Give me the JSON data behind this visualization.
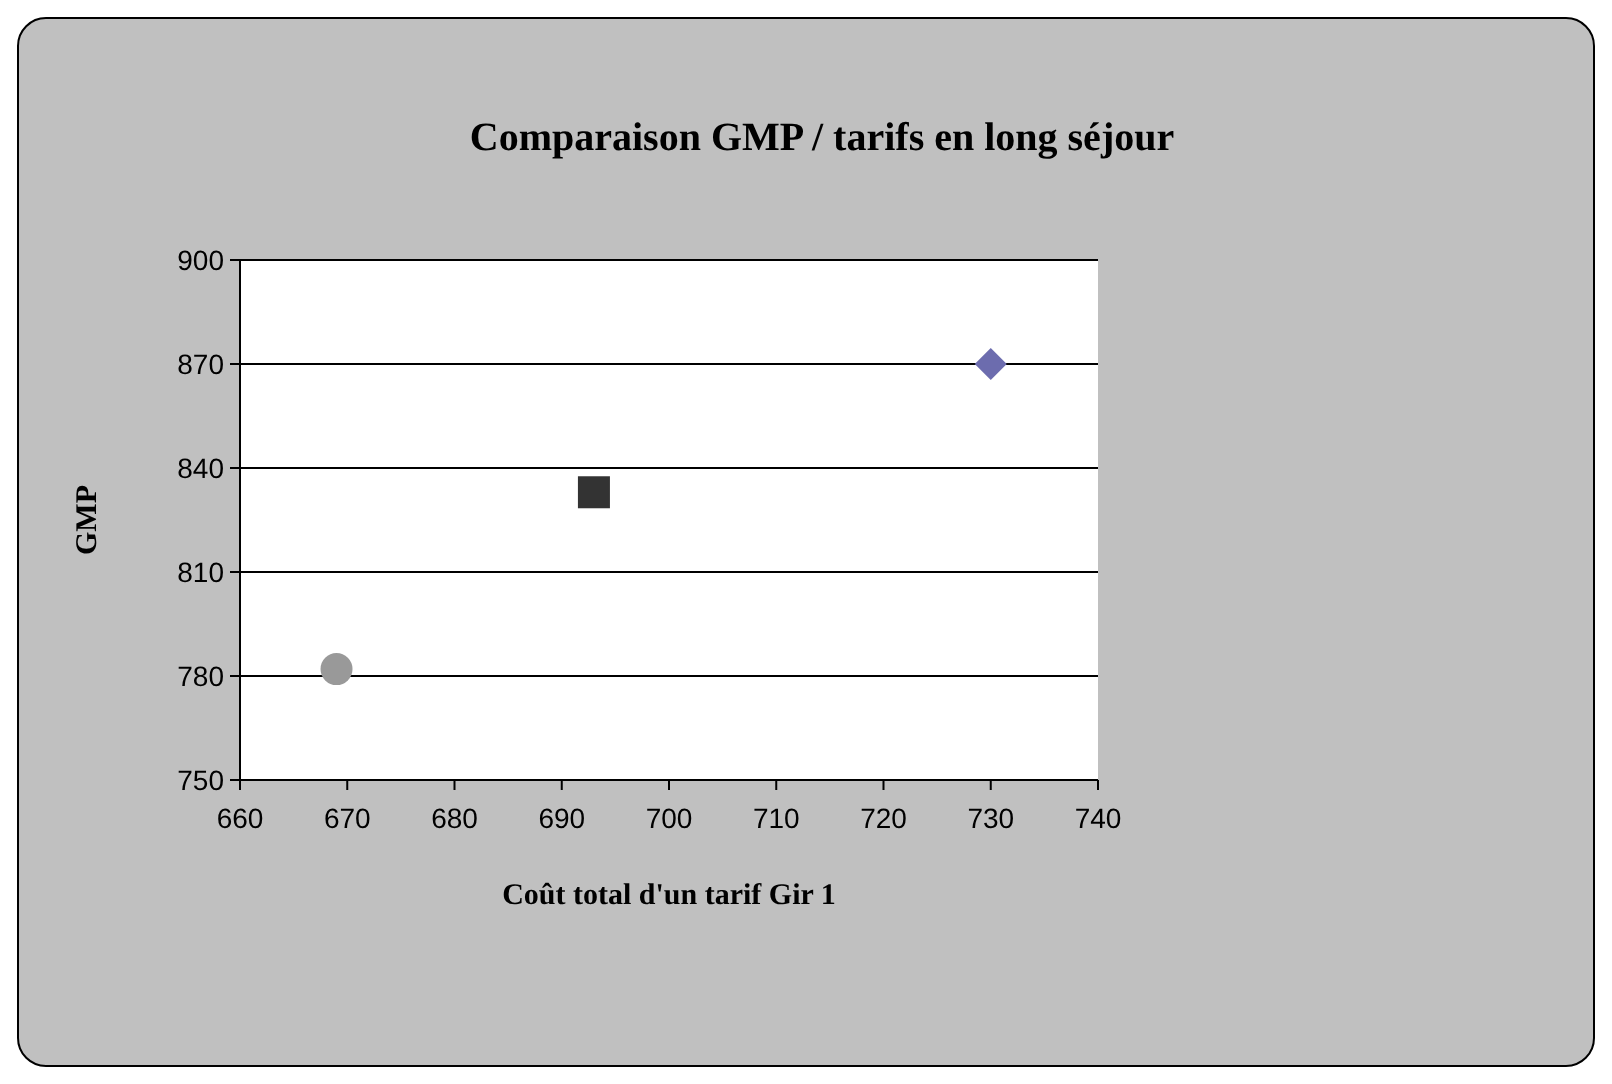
{
  "chart_data": {
    "type": "scatter",
    "title": "Comparaison GMP / tarifs en long séjour",
    "xlabel": "Coût total d'un tarif Gir 1",
    "ylabel": "GMP",
    "xlim": [
      660,
      740
    ],
    "xticks": [
      660,
      670,
      680,
      690,
      700,
      710,
      720,
      730,
      740
    ],
    "ylim": [
      750,
      900
    ],
    "yticks": [
      750,
      780,
      810,
      840,
      870,
      900
    ],
    "grid": "y",
    "series": [
      {
        "color": "#999999",
        "marker": "circle",
        "x": [
          669
        ],
        "values": [
          782
        ]
      },
      {
        "color": "#333333",
        "marker": "square",
        "x": [
          693
        ],
        "values": [
          833
        ]
      },
      {
        "color": "#6c6cae",
        "marker": "diamond",
        "x": [
          730
        ],
        "values": [
          870
        ]
      }
    ]
  }
}
